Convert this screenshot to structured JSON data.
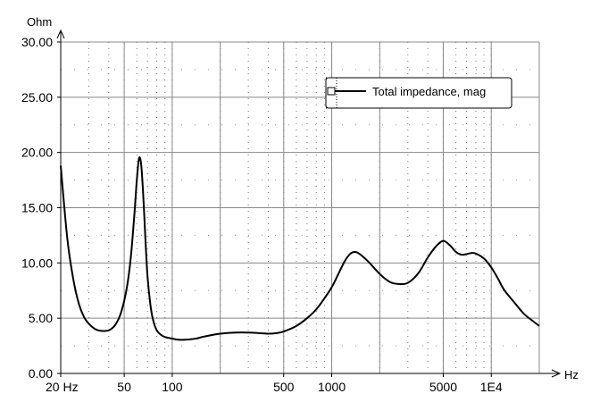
{
  "chart_data": {
    "type": "line",
    "xscale": "log",
    "xlim": [
      20,
      20000
    ],
    "ylim": [
      0,
      30
    ],
    "ylabel": "Ohm",
    "xlabel": "Hz",
    "grid": true,
    "legend_position": "top-right",
    "y_ticks": [
      "0.00",
      "5.00",
      "10.00",
      "15.00",
      "20.00",
      "25.00",
      "30.00"
    ],
    "y_tick_values": [
      0,
      5,
      10,
      15,
      20,
      25,
      30
    ],
    "x_ticks": [
      {
        "value": 20,
        "label": "20 Hz"
      },
      {
        "value": 50,
        "label": "50"
      },
      {
        "value": 100,
        "label": "100"
      },
      {
        "value": 500,
        "label": "500"
      },
      {
        "value": 1000,
        "label": "1000"
      },
      {
        "value": 5000,
        "label": "5000"
      },
      {
        "value": 10000,
        "label": "1E4"
      }
    ],
    "series": [
      {
        "name": "Total impedance, mag",
        "color": "#000000",
        "x": [
          20,
          22,
          24,
          26,
          28,
          30,
          33,
          36,
          40,
          44,
          48,
          52,
          55,
          58,
          60,
          62,
          64,
          66,
          68,
          70,
          73,
          76,
          80,
          85,
          90,
          100,
          110,
          120,
          140,
          160,
          200,
          250,
          300,
          350,
          400,
          450,
          500,
          600,
          700,
          800,
          900,
          1000,
          1100,
          1200,
          1300,
          1400,
          1500,
          1700,
          2000,
          2300,
          2600,
          3000,
          3500,
          4000,
          4500,
          5000,
          5500,
          6000,
          6500,
          7000,
          7500,
          8000,
          9000,
          10000,
          11000,
          12000,
          14000,
          16000,
          18000,
          20000
        ],
        "values": [
          18.8,
          12.2,
          8.5,
          6.3,
          5.1,
          4.5,
          4.0,
          3.85,
          3.9,
          4.4,
          5.6,
          7.8,
          10.5,
          14.5,
          17.5,
          19.5,
          18.8,
          15.8,
          12.0,
          8.8,
          6.2,
          4.8,
          3.9,
          3.5,
          3.3,
          3.15,
          3.05,
          3.05,
          3.15,
          3.35,
          3.6,
          3.7,
          3.7,
          3.65,
          3.6,
          3.65,
          3.8,
          4.3,
          5.0,
          5.8,
          6.8,
          7.8,
          9.0,
          10.1,
          10.8,
          11.0,
          10.8,
          10.1,
          9.0,
          8.3,
          8.1,
          8.2,
          9.1,
          10.5,
          11.5,
          12.0,
          11.6,
          11.0,
          10.75,
          10.8,
          10.9,
          10.85,
          10.4,
          9.6,
          8.6,
          7.6,
          6.4,
          5.4,
          4.8,
          4.3
        ]
      }
    ]
  }
}
